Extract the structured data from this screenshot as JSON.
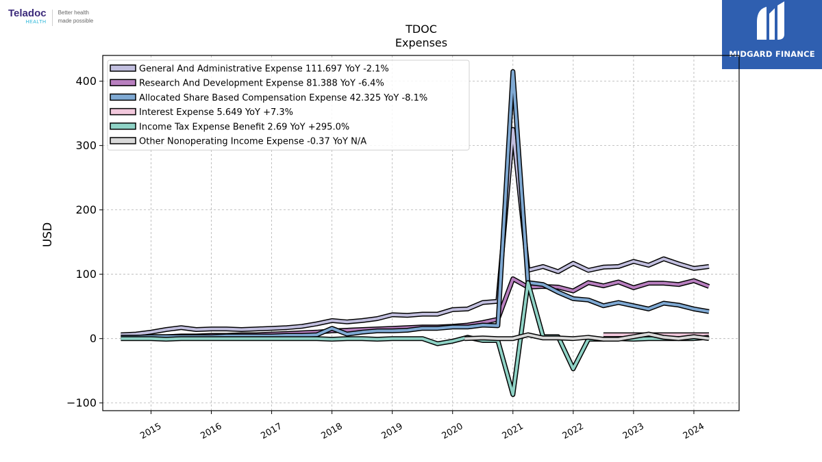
{
  "logos": {
    "left": {
      "name": "Teladoc",
      "sub": "HEALTH",
      "tagline_1": "Better health",
      "tagline_2": "made possible"
    },
    "right": {
      "name": "MIDGARD FINANCE"
    }
  },
  "chart_data": {
    "type": "line",
    "title": "TDOC",
    "subtitle": "Expenses",
    "ylabel": "USD",
    "xlabel": "",
    "xlim": [
      2014.2,
      2024.75
    ],
    "ylim": [
      -112,
      440
    ],
    "yticks": [
      -100,
      0,
      100,
      200,
      300,
      400
    ],
    "ytick_labels": [
      "−100",
      "0",
      "100",
      "200",
      "300",
      "400"
    ],
    "xticks": [
      2015,
      2016,
      2017,
      2018,
      2019,
      2020,
      2021,
      2022,
      2023,
      2024
    ],
    "xtick_labels": [
      "2015",
      "2016",
      "2017",
      "2018",
      "2019",
      "2020",
      "2021",
      "2022",
      "2023",
      "2024"
    ],
    "grid": true,
    "legend_position": "top-left",
    "series": [
      {
        "name": "General And Administrative Expense",
        "legend_label": "General And Administrative Expense  111.697 YoY -2.1%",
        "color": "#c2bfdf",
        "x": [
          2014.5,
          2014.75,
          2015.0,
          2015.25,
          2015.5,
          2015.75,
          2016.0,
          2016.25,
          2016.5,
          2016.75,
          2017.0,
          2017.25,
          2017.5,
          2017.75,
          2018.0,
          2018.25,
          2018.5,
          2018.75,
          2019.0,
          2019.25,
          2019.5,
          2019.75,
          2020.0,
          2020.25,
          2020.5,
          2020.75,
          2021.0,
          2021.25,
          2021.5,
          2021.75,
          2022.0,
          2022.25,
          2022.5,
          2022.75,
          2023.0,
          2023.25,
          2023.5,
          2023.75,
          2024.0,
          2024.25
        ],
        "y": [
          6,
          7,
          10,
          14,
          17,
          14,
          15,
          15,
          14,
          15,
          16,
          17,
          19,
          23,
          28,
          26,
          28,
          31,
          37,
          36,
          38,
          38,
          45,
          46,
          56,
          58,
          325,
          106,
          112,
          104,
          117,
          106,
          111,
          112,
          120,
          114,
          124,
          116,
          109,
          112
        ]
      },
      {
        "name": "Research And Development Expense",
        "legend_label": "Research And Development Expense  81.388 YoY -6.4%",
        "color": "#b87fbf",
        "x": [
          2014.5,
          2014.75,
          2015.0,
          2015.25,
          2015.5,
          2015.75,
          2016.0,
          2016.25,
          2016.5,
          2016.75,
          2017.0,
          2017.25,
          2017.5,
          2017.75,
          2018.0,
          2018.25,
          2018.5,
          2018.75,
          2019.0,
          2019.25,
          2019.5,
          2019.75,
          2020.0,
          2020.25,
          2020.5,
          2020.75,
          2021.0,
          2021.25,
          2021.5,
          2021.75,
          2022.0,
          2022.25,
          2022.5,
          2022.75,
          2023.0,
          2023.25,
          2023.5,
          2023.75,
          2024.0,
          2024.25
        ],
        "y": [
          2,
          2,
          3,
          3,
          4,
          4,
          5,
          5,
          6,
          6,
          7,
          8,
          9,
          10,
          12,
          13,
          14,
          15,
          16,
          17,
          18,
          18,
          19,
          21,
          25,
          30,
          93,
          80,
          81,
          80,
          74,
          87,
          82,
          88,
          79,
          86,
          86,
          84,
          90,
          81
        ]
      },
      {
        "name": "Allocated Share Based Compensation Expense",
        "legend_label": "Allocated Share Based Compensation Expense  42.325 YoY -8.1%",
        "color": "#7fa9d3",
        "x": [
          2014.5,
          2014.75,
          2015.0,
          2015.25,
          2015.5,
          2015.75,
          2016.0,
          2016.25,
          2016.5,
          2016.75,
          2017.0,
          2017.25,
          2017.5,
          2017.75,
          2018.0,
          2018.25,
          2018.5,
          2018.75,
          2019.0,
          2019.25,
          2019.5,
          2019.75,
          2020.0,
          2020.25,
          2020.5,
          2020.75,
          2021.0,
          2021.25,
          2021.5,
          2021.75,
          2022.0,
          2022.25,
          2022.5,
          2022.75,
          2023.0,
          2023.25,
          2023.5,
          2023.75,
          2024.0,
          2024.25
        ],
        "y": [
          2,
          2,
          3,
          3,
          3,
          3,
          3,
          4,
          4,
          4,
          4,
          5,
          5,
          6,
          16,
          7,
          10,
          12,
          12,
          13,
          16,
          16,
          18,
          18,
          21,
          20,
          415,
          87,
          84,
          72,
          62,
          60,
          51,
          56,
          51,
          46,
          55,
          52,
          46,
          42
        ]
      },
      {
        "name": "Interest Expense",
        "legend_label": "Interest Expense  5.649 YoY +7.3%",
        "color": "#f2c8dc",
        "x": [
          2022.5,
          2022.75,
          2023.0,
          2023.25,
          2023.5,
          2023.75,
          2024.0,
          2024.25
        ],
        "y": [
          6,
          6,
          6,
          6,
          6,
          6,
          6,
          6
        ]
      },
      {
        "name": "Income Tax Expense Benefit",
        "legend_label": "Income Tax Expense Benefit  2.69 YoY +295.0%",
        "color": "#8fd3c6",
        "x": [
          2014.5,
          2014.75,
          2015.0,
          2015.25,
          2015.5,
          2015.75,
          2016.0,
          2016.25,
          2016.5,
          2016.75,
          2017.0,
          2017.25,
          2017.5,
          2017.75,
          2018.0,
          2018.25,
          2018.5,
          2018.75,
          2019.0,
          2019.25,
          2019.5,
          2019.75,
          2020.0,
          2020.25,
          2020.5,
          2020.75,
          2021.0,
          2021.25,
          2021.5,
          2021.75,
          2022.0,
          2022.25,
          2022.5,
          2022.75,
          2023.0,
          2023.25,
          2023.5,
          2023.75,
          2024.0,
          2024.25
        ],
        "y": [
          0,
          0,
          0,
          -1,
          0,
          0,
          0,
          0,
          0,
          0,
          0,
          0,
          0,
          0,
          -1,
          0,
          0,
          -1,
          0,
          0,
          0,
          -8,
          -4,
          2,
          -3,
          -3,
          -87,
          87,
          3,
          3,
          -47,
          -1,
          -1,
          0,
          -1,
          0,
          0,
          0,
          0,
          2
        ]
      },
      {
        "name": "Other Nonoperating Income Expense",
        "legend_label": "Other Nonoperating Income Expense  -0.37 YoY N/A",
        "color": "#d9d9d9",
        "x": [
          2020.2,
          2020.5,
          2020.75,
          2021.0,
          2021.25,
          2021.5,
          2021.75,
          2022.0,
          2022.25,
          2022.5,
          2022.75,
          2023.0,
          2023.25,
          2023.5,
          2023.75,
          2024.0,
          2024.25
        ],
        "y": [
          0,
          1,
          0,
          0,
          6,
          1,
          1,
          0,
          2,
          -1,
          -1,
          3,
          7,
          2,
          0,
          3,
          0
        ]
      }
    ]
  }
}
